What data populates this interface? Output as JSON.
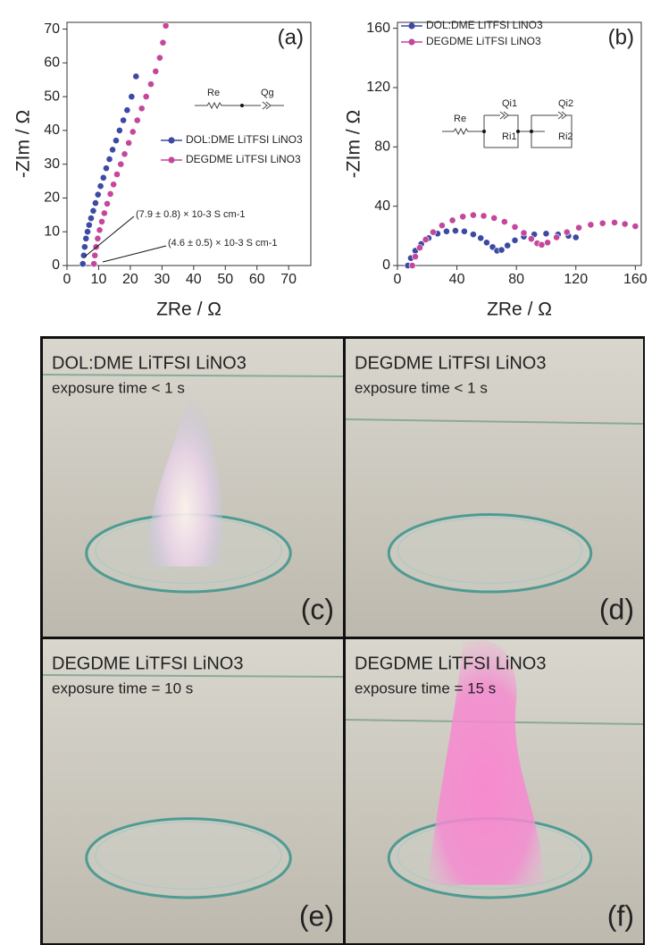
{
  "chart_data": [
    {
      "type": "scatter",
      "panel": "(a)",
      "x_label": "ZRe / Ω",
      "y_label": "-ZIm / Ω",
      "xlim": [
        0,
        77
      ],
      "ylim": [
        0,
        72
      ],
      "xticks": [
        0,
        10,
        20,
        30,
        40,
        50,
        60,
        70
      ],
      "yticks": [
        0,
        10,
        20,
        30,
        40,
        50,
        60,
        70
      ],
      "legend": "right",
      "series": [
        {
          "name": "DOL:DME LiTFSI LiNO3",
          "color": "#3c4aa3",
          "x": [
            5,
            5.3,
            5.6,
            6,
            6.5,
            7,
            7.6,
            8.3,
            9,
            9.8,
            10.6,
            11.5,
            12.4,
            13.4,
            14.4,
            15.5,
            16.6,
            17.8,
            19,
            20.4,
            21.8
          ],
          "values": [
            0.5,
            3,
            5.5,
            8,
            10,
            12,
            14,
            16.2,
            18.5,
            21,
            23.5,
            26,
            28.8,
            31.5,
            34.3,
            37,
            40,
            43,
            46,
            50,
            56
          ]
        },
        {
          "name": "DEGDME LiTFSI LiNO3",
          "color": "#c4479c",
          "x": [
            8.5,
            8.8,
            9.2,
            9.7,
            10.3,
            11,
            11.8,
            12.7,
            13.7,
            14.7,
            15.8,
            17,
            18.2,
            19.5,
            20.8,
            22.2,
            23.6,
            25,
            26.5,
            28,
            29.3,
            30.3,
            31.2
          ],
          "values": [
            0.5,
            3,
            5.5,
            8,
            10.5,
            13,
            15.5,
            18.3,
            21.2,
            24,
            27,
            30,
            33,
            36.3,
            39.6,
            43,
            46.5,
            50,
            53.7,
            57.5,
            61.5,
            66,
            71
          ]
        }
      ],
      "annotations": [
        "(7.9 ± 0.8) × 10-3 S cm-1",
        "(4.6 ± 0.5) × 10-3 S cm-1",
        "Re",
        "Qg"
      ]
    },
    {
      "type": "scatter",
      "panel": "(b)",
      "x_label": "ZRe / Ω",
      "y_label": "-ZIm / Ω",
      "xlim": [
        0,
        164
      ],
      "ylim": [
        0,
        164
      ],
      "xticks": [
        0,
        40,
        80,
        120,
        160
      ],
      "yticks": [
        0,
        40,
        80,
        120,
        160
      ],
      "legend": "upper left",
      "series": [
        {
          "name": "DOL:DME LiTFSI LiNO3",
          "color": "#3c4aa3",
          "x": [
            7,
            9,
            12,
            16,
            21,
            27,
            33,
            39,
            45,
            51,
            56,
            60,
            64,
            67,
            70,
            74,
            79,
            85,
            92,
            100,
            108,
            115,
            120
          ],
          "values": [
            0,
            5,
            10,
            14.5,
            18.5,
            21.5,
            23,
            23.5,
            23,
            21,
            18.5,
            15.5,
            12.5,
            10,
            10.5,
            13.5,
            17,
            19.5,
            21,
            21.5,
            21,
            20,
            19
          ]
        },
        {
          "name": "DEGDME LiTFSI LiNO3",
          "color": "#c4479c",
          "x": [
            10,
            12,
            15,
            19,
            24,
            30,
            37,
            44,
            51,
            58,
            65,
            72,
            79,
            85,
            90,
            94,
            97,
            101,
            107,
            114,
            122,
            130,
            138,
            146,
            153,
            160
          ],
          "values": [
            0,
            6,
            12,
            17.5,
            22.5,
            27,
            30.5,
            33,
            34,
            33.5,
            32,
            29.5,
            26,
            22,
            18,
            15,
            14,
            15.5,
            19,
            22.5,
            25.5,
            27.5,
            28.5,
            29,
            28,
            26.5
          ]
        }
      ],
      "annotations": [
        "Re",
        "Qi1",
        "Ri1",
        "Qi2",
        "Ri2"
      ]
    }
  ],
  "photos": [
    {
      "title": "DOL:DME LiTFSI LiNO3",
      "caption": "exposure time < 1 s",
      "panel": "(c)"
    },
    {
      "title": "DEGDME LiTFSI LiNO3",
      "caption": "exposure time < 1 s",
      "panel": "(d)"
    },
    {
      "title": "DEGDME LiTFSI LiNO3",
      "caption": "exposure time = 10 s",
      "panel": "(e)"
    },
    {
      "title": "DEGDME LiTFSI LiNO3",
      "caption": "exposure time = 15 s",
      "panel": "(f)"
    }
  ]
}
